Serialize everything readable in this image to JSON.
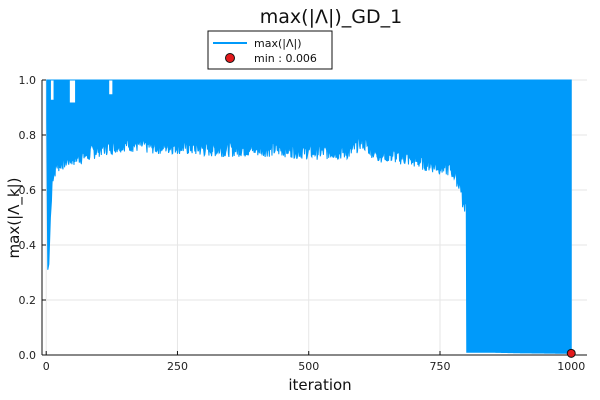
{
  "chart_data": {
    "type": "line",
    "title": "max(|Λ|)_GD_1",
    "xlabel": "iteration",
    "ylabel": "max(|Λ_k|)",
    "xlim": [
      -8,
      1030
    ],
    "ylim": [
      0,
      1
    ],
    "x_ticks": [
      0,
      250,
      500,
      750,
      1000
    ],
    "x_tick_labels": [
      "0",
      "250",
      "500",
      "750",
      "1000"
    ],
    "y_ticks": [
      0.0,
      0.2,
      0.4,
      0.6,
      0.8,
      1.0
    ],
    "y_tick_labels": [
      "0.0",
      "0.2",
      "0.4",
      "0.6",
      "0.8",
      "1.0"
    ],
    "grid": true,
    "legend_position": "top-center",
    "series": [
      {
        "name": "max(|Λ|)",
        "color": "#009AFA",
        "kind": "oscillating-line",
        "upper_envelope": {
          "x": [
            1,
            1000
          ],
          "y": [
            1.0,
            1.0
          ]
        },
        "lower_envelope": {
          "x": [
            1,
            3,
            5,
            8,
            12,
            20,
            40,
            60,
            80,
            100,
            150,
            200,
            250,
            300,
            350,
            400,
            450,
            500,
            550,
            580,
            600,
            630,
            650,
            680,
            700,
            720,
            740,
            760,
            770,
            780,
            790,
            795,
            800,
            801,
            850,
            900,
            950,
            1000
          ],
          "y": [
            0.85,
            0.31,
            0.33,
            0.5,
            0.62,
            0.66,
            0.68,
            0.69,
            0.7,
            0.72,
            0.74,
            0.73,
            0.73,
            0.72,
            0.72,
            0.72,
            0.72,
            0.71,
            0.71,
            0.71,
            0.75,
            0.7,
            0.7,
            0.69,
            0.68,
            0.67,
            0.66,
            0.65,
            0.65,
            0.62,
            0.58,
            0.5,
            0.55,
            0.01,
            0.01,
            0.008,
            0.007,
            0.006
          ]
        },
        "dense_oscillation_from_x": 801
      },
      {
        "name": "min : 0.006",
        "kind": "marker",
        "color": "#E31A1C",
        "x": [
          1000
        ],
        "y": [
          0.006
        ]
      }
    ]
  }
}
